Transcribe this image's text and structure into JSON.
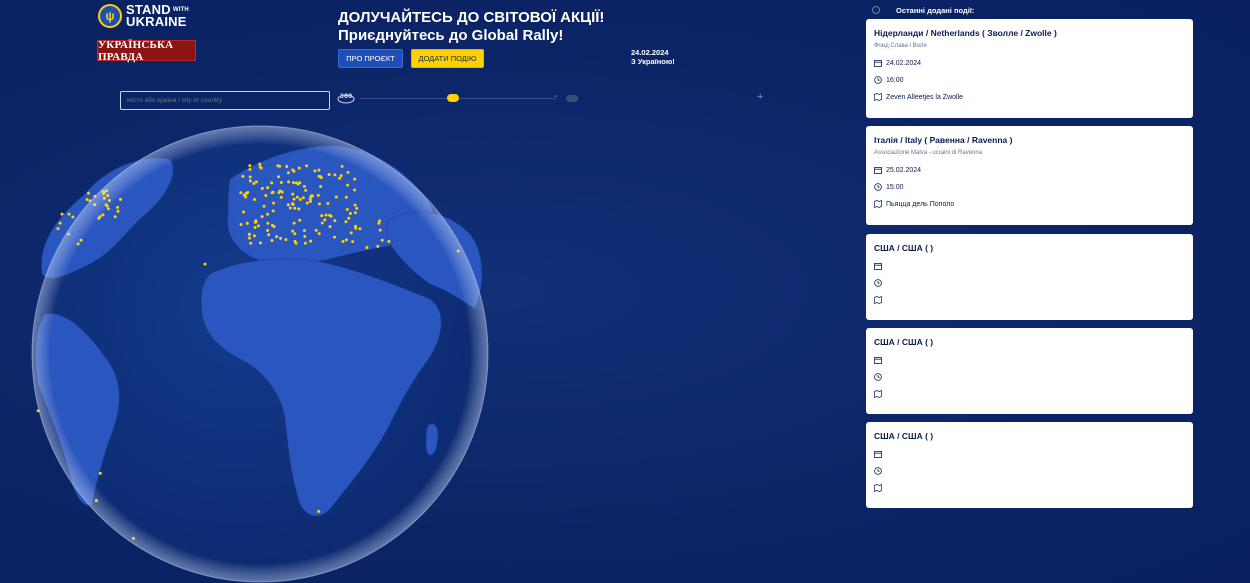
{
  "header": {
    "logo_line1": "STAND",
    "logo_with": "WITH",
    "logo_line2": "UKRAINE",
    "partner_logo": "УКРАЇНСЬКА ПРАВДА",
    "headline_line1": "ДОЛУЧАЙТЕСЬ ДО СВІТОВОЇ АКЦІЇ!",
    "headline_line2": "Приєднуйтесь до Global Rally!",
    "about_button": "ПРО ПРОЄКТ",
    "add_event_button": "ДОДАТИ ПОДІЮ",
    "date": "24.02.2024",
    "date_sub": "З Україною!"
  },
  "search": {
    "placeholder": "місто або країна / city or country"
  },
  "controls": {
    "rotate_label": "360"
  },
  "panel": {
    "title": "Останні додані події:",
    "events": [
      {
        "title": "Нідерланди / Netherlands ( Зволле / Zwolle )",
        "org": "Фонд Слава і Воля",
        "date": "24.02.2024",
        "time": "16:00",
        "place": "Zeven Alleetjes la Zwolle"
      },
      {
        "title": "Італія / Italy ( Равенна / Ravenna )",
        "org": "Associazione Malva - ucraini di Ravenna",
        "date": "25.02.2024",
        "time": "15:00",
        "place": "Пьяцца дель Пополо"
      },
      {
        "title": "США / США ( )",
        "org": "",
        "date": "",
        "time": "",
        "place": ""
      },
      {
        "title": "США / США ( )",
        "org": "",
        "date": "",
        "time": "",
        "place": ""
      },
      {
        "title": "США / США ( )",
        "org": "",
        "date": "",
        "time": "",
        "place": ""
      }
    ]
  },
  "colors": {
    "background": "#0b2466",
    "accent": "#ffd100",
    "button_blue": "#1f4fb6",
    "land": "#2a56c0"
  },
  "icons": [
    "calendar-icon",
    "clock-icon",
    "map-icon",
    "rotate-360-icon"
  ]
}
